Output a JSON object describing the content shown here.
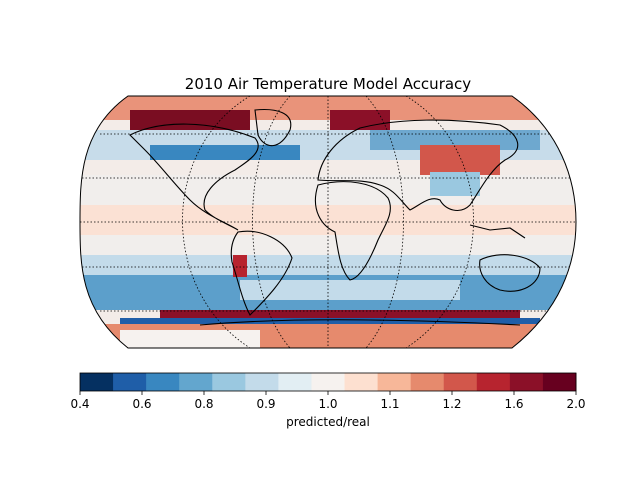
{
  "title": "2010 Air Temperature Model Accuracy",
  "colorbar": {
    "label": "predicted/real",
    "tick_labels": [
      "0.4",
      "0.6",
      "0.8",
      "0.9",
      "1.0",
      "1.1",
      "1.2",
      "1.6",
      "2.0"
    ],
    "colors": [
      "#053061",
      "#1f5ea8",
      "#3987c0",
      "#63a6ce",
      "#9ac8e0",
      "#c3dbea",
      "#e2eef3",
      "#f6f2ef",
      "#fde0d0",
      "#f7b799",
      "#e68a6d",
      "#d2574b",
      "#b7242f",
      "#8b1028",
      "#67001f"
    ]
  },
  "map": {
    "projection": "robinson",
    "graticule": "dotted",
    "coastlines": "black"
  }
}
